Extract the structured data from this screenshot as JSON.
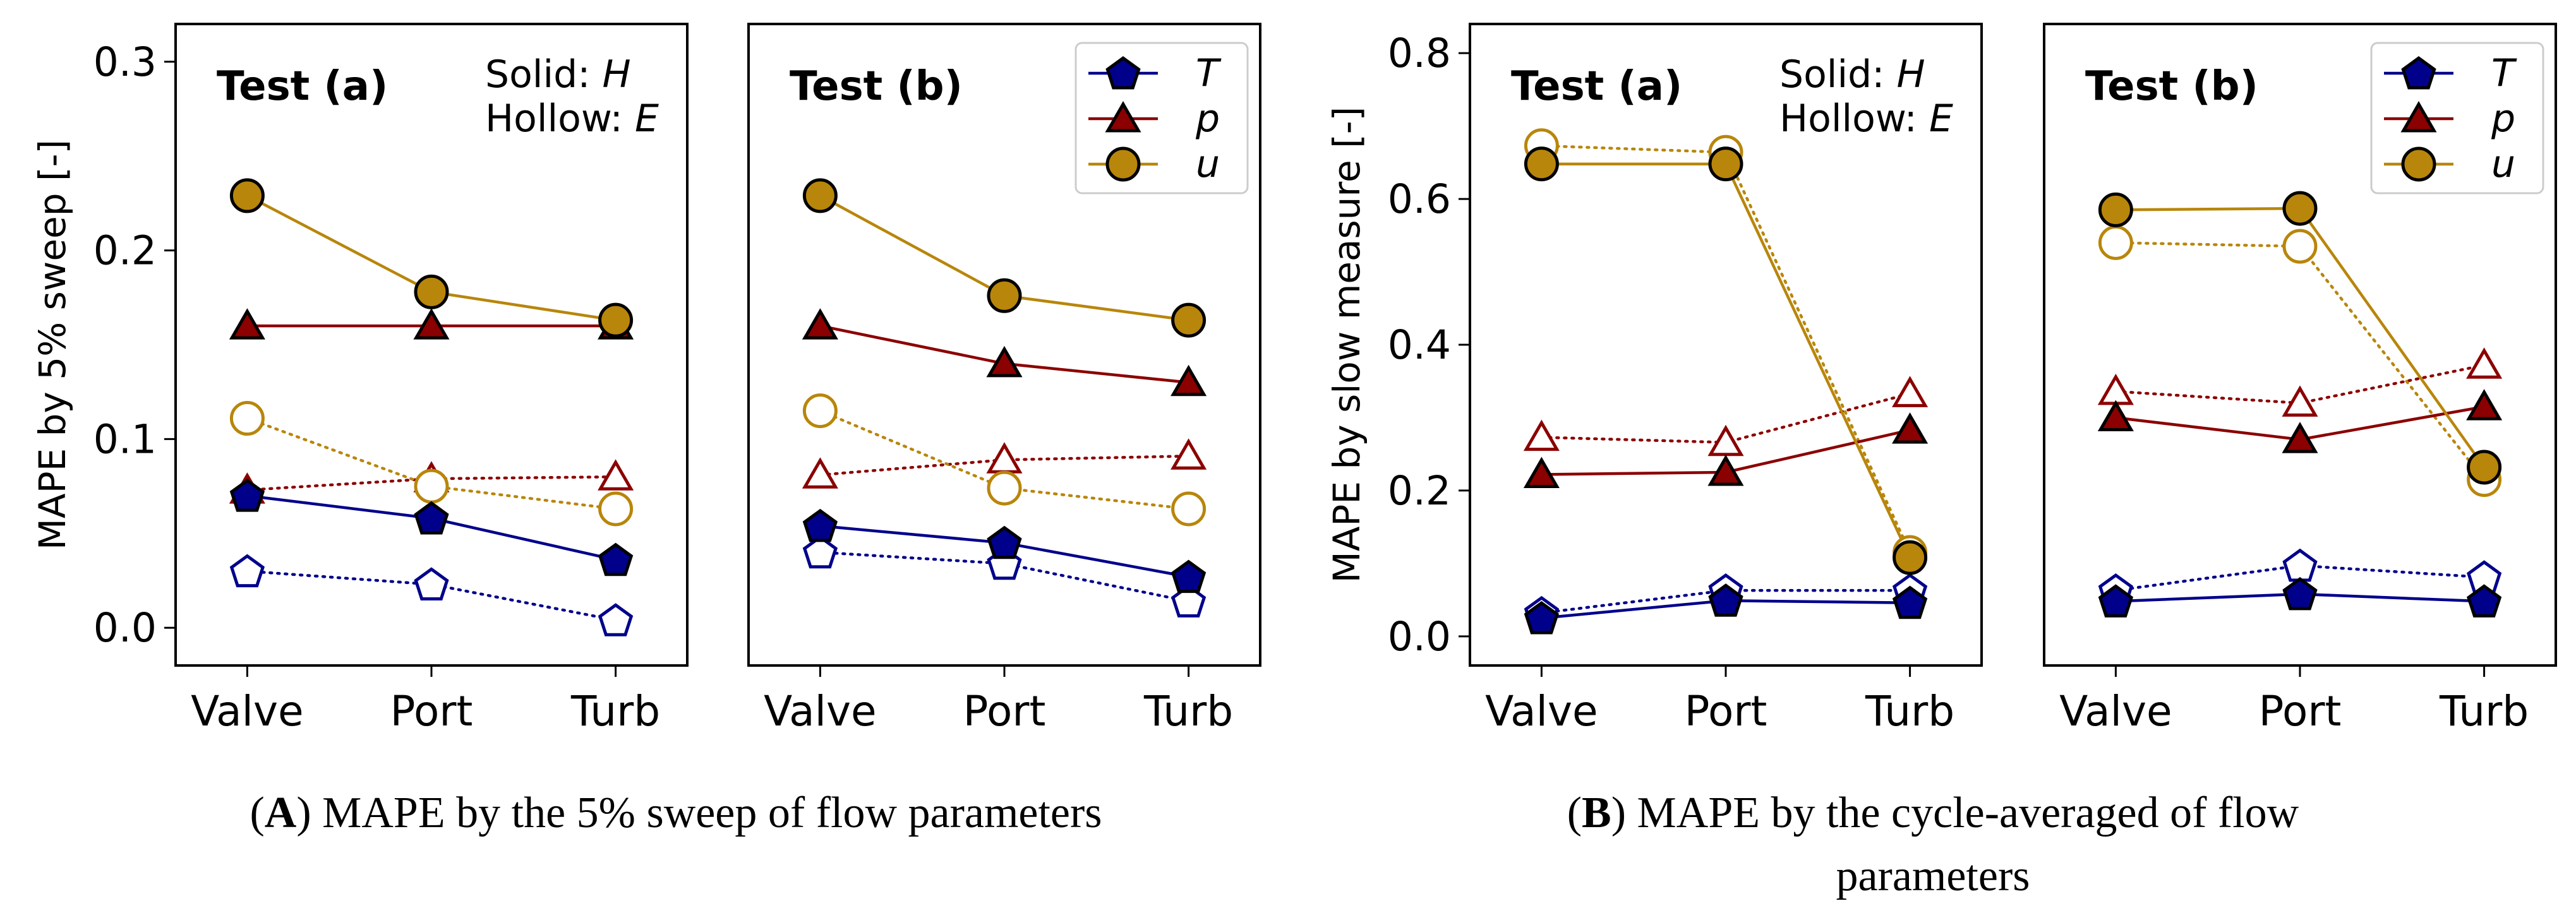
{
  "colors": {
    "T": "#00008b",
    "p": "#8b0000",
    "u": "#b8860b"
  },
  "styles": {
    "T": {
      "marker": "pentagon-icon"
    },
    "p": {
      "marker": "triangle-icon"
    },
    "u": {
      "marker": "circle-icon"
    }
  },
  "categories": [
    "Valve",
    "Port",
    "Turb"
  ],
  "groups": [
    {
      "id": "A",
      "ylabel": "MAPE by 5% sweep [-]",
      "ylim": [
        -0.02,
        0.32
      ],
      "yticks": [
        "0.0",
        "0.1",
        "0.2",
        "0.3"
      ],
      "caption": {
        "letter": "A",
        "text": ") MAPE by the 5% sweep of flow parameters",
        "open": "("
      }
    },
    {
      "id": "B",
      "ylabel": "MAPE by slow measure [-]",
      "ylim": [
        -0.04,
        0.84
      ],
      "yticks": [
        "0.0",
        "0.2",
        "0.4",
        "0.6",
        "0.8"
      ],
      "caption": {
        "letter": "B",
        "text": ") MAPE by the cycle-averaged of flow",
        "text2": "parameters",
        "open": "("
      }
    }
  ],
  "chart_data": [
    {
      "type": "line",
      "panel": "A-a",
      "title": "Test (a)",
      "xlabel": "",
      "ylabel": "MAPE by 5% sweep [-]",
      "ylim": [
        -0.02,
        0.32
      ],
      "categories": [
        "Valve",
        "Port",
        "Turb"
      ],
      "note": {
        "solid": "Solid: ",
        "solid_var": "H",
        "hollow": "Hollow: ",
        "hollow_var": "E"
      },
      "legend": [],
      "series": [
        {
          "name": "T",
          "fill": "solid",
          "values": [
            0.07,
            0.058,
            0.036
          ]
        },
        {
          "name": "p",
          "fill": "solid",
          "values": [
            0.16,
            0.16,
            0.16
          ]
        },
        {
          "name": "u",
          "fill": "solid",
          "values": [
            0.229,
            0.178,
            0.163
          ]
        },
        {
          "name": "T",
          "fill": "hollow",
          "values": [
            0.03,
            0.023,
            0.004
          ]
        },
        {
          "name": "p",
          "fill": "hollow",
          "values": [
            0.073,
            0.079,
            0.08
          ]
        },
        {
          "name": "u",
          "fill": "hollow",
          "values": [
            0.111,
            0.075,
            0.063
          ]
        }
      ]
    },
    {
      "type": "line",
      "panel": "A-b",
      "title": "Test (b)",
      "xlabel": "",
      "ylabel": "",
      "ylim": [
        -0.02,
        0.32
      ],
      "categories": [
        "Valve",
        "Port",
        "Turb"
      ],
      "legend": [
        "T",
        "p",
        "u"
      ],
      "series": [
        {
          "name": "T",
          "fill": "solid",
          "values": [
            0.054,
            0.045,
            0.027
          ]
        },
        {
          "name": "p",
          "fill": "solid",
          "values": [
            0.16,
            0.14,
            0.13
          ]
        },
        {
          "name": "u",
          "fill": "solid",
          "values": [
            0.229,
            0.176,
            0.163
          ]
        },
        {
          "name": "T",
          "fill": "hollow",
          "values": [
            0.04,
            0.034,
            0.014
          ]
        },
        {
          "name": "p",
          "fill": "hollow",
          "values": [
            0.081,
            0.089,
            0.091
          ]
        },
        {
          "name": "u",
          "fill": "hollow",
          "values": [
            0.115,
            0.074,
            0.063
          ]
        }
      ]
    },
    {
      "type": "line",
      "panel": "B-a",
      "title": "Test (a)",
      "xlabel": "",
      "ylabel": "MAPE by slow measure [-]",
      "ylim": [
        -0.04,
        0.84
      ],
      "categories": [
        "Valve",
        "Port",
        "Turb"
      ],
      "note": {
        "solid": "Solid: ",
        "solid_var": "H",
        "hollow": "Hollow: ",
        "hollow_var": "E"
      },
      "legend": [],
      "series": [
        {
          "name": "T",
          "fill": "solid",
          "values": [
            0.025,
            0.049,
            0.046
          ]
        },
        {
          "name": "p",
          "fill": "solid",
          "values": [
            0.222,
            0.225,
            0.283
          ]
        },
        {
          "name": "u",
          "fill": "solid",
          "values": [
            0.648,
            0.648,
            0.108
          ]
        },
        {
          "name": "T",
          "fill": "hollow",
          "values": [
            0.032,
            0.063,
            0.063
          ]
        },
        {
          "name": "p",
          "fill": "hollow",
          "values": [
            0.273,
            0.266,
            0.333
          ]
        },
        {
          "name": "u",
          "fill": "hollow",
          "values": [
            0.673,
            0.664,
            0.115
          ]
        }
      ]
    },
    {
      "type": "line",
      "panel": "B-b",
      "title": "Test (b)",
      "xlabel": "",
      "ylabel": "",
      "ylim": [
        -0.04,
        0.84
      ],
      "categories": [
        "Valve",
        "Port",
        "Turb"
      ],
      "legend": [
        "T",
        "p",
        "u"
      ],
      "series": [
        {
          "name": "T",
          "fill": "solid",
          "values": [
            0.048,
            0.058,
            0.048
          ]
        },
        {
          "name": "p",
          "fill": "solid",
          "values": [
            0.3,
            0.27,
            0.315
          ]
        },
        {
          "name": "u",
          "fill": "solid",
          "values": [
            0.585,
            0.587,
            0.232
          ]
        },
        {
          "name": "T",
          "fill": "hollow",
          "values": [
            0.063,
            0.097,
            0.081
          ]
        },
        {
          "name": "p",
          "fill": "hollow",
          "values": [
            0.336,
            0.32,
            0.372
          ]
        },
        {
          "name": "u",
          "fill": "hollow",
          "values": [
            0.54,
            0.535,
            0.215
          ]
        }
      ]
    }
  ]
}
